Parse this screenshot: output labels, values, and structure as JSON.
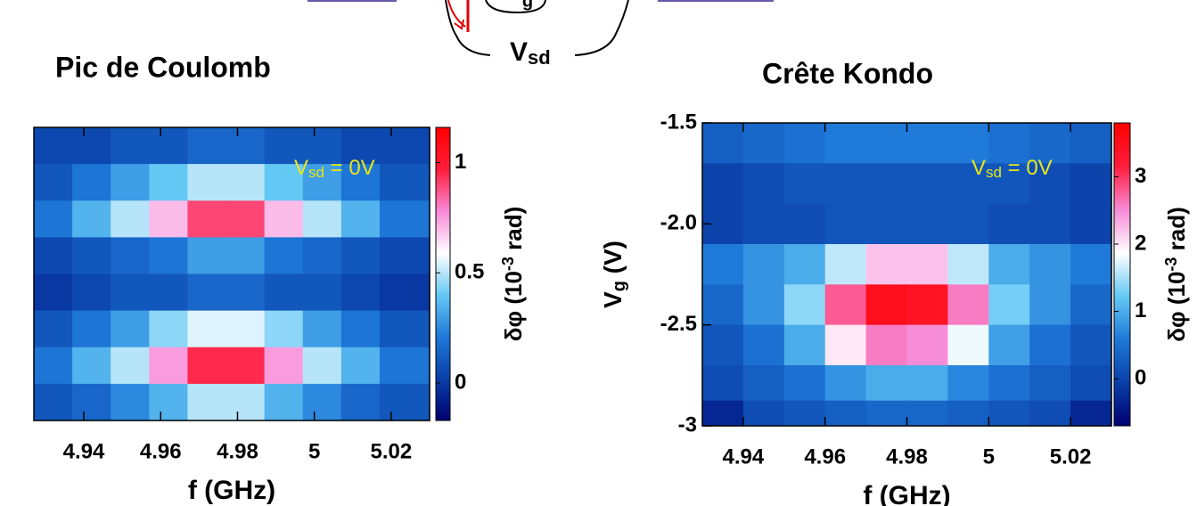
{
  "diagram": {
    "gate_label": "g",
    "source_drain_label": {
      "main": "V",
      "sub": "sd"
    }
  },
  "chart_data": [
    {
      "type": "heatmap",
      "title": "Pic de Coulomb",
      "xlabel": "f (GHz)",
      "colorbar_label": {
        "main": "δφ (10",
        "sup": "-3",
        "rest": " rad)"
      },
      "annotation": {
        "main": "V",
        "sub": "sd",
        "rest": " = 0V"
      },
      "annotation_color": "#e6e61a",
      "xlim": [
        4.927,
        5.03
      ],
      "xticks": [
        4.94,
        4.96,
        4.98,
        5,
        5.02
      ],
      "clim": [
        -0.17,
        1.16
      ],
      "cticks": [
        0,
        0.5,
        1
      ],
      "colormap": [
        "#000070",
        "#0a3fa8",
        "#1e78d8",
        "#64c8f4",
        "#ffffff",
        "#f78ad8",
        "#ff1e3c",
        "#ff0000"
      ],
      "x": [
        4.932,
        4.942,
        4.952,
        4.962,
        4.972,
        4.982,
        4.992,
        5.002,
        5.012,
        5.022
      ],
      "z": [
        [
          0.05,
          0.05,
          0.1,
          0.1,
          0.15,
          0.15,
          0.1,
          0.1,
          0.05,
          0.05
        ],
        [
          0.1,
          0.2,
          0.3,
          0.4,
          0.5,
          0.5,
          0.4,
          0.3,
          0.2,
          0.1
        ],
        [
          0.2,
          0.35,
          0.5,
          0.7,
          0.9,
          0.9,
          0.7,
          0.5,
          0.35,
          0.2
        ],
        [
          0.05,
          0.1,
          0.15,
          0.2,
          0.3,
          0.3,
          0.2,
          0.15,
          0.1,
          0.05
        ],
        [
          0,
          0.05,
          0.1,
          0.1,
          0.15,
          0.15,
          0.1,
          0.1,
          0.05,
          0
        ],
        [
          0.1,
          0.2,
          0.3,
          0.45,
          0.55,
          0.55,
          0.45,
          0.3,
          0.2,
          0.1
        ],
        [
          0.2,
          0.35,
          0.5,
          0.75,
          0.95,
          0.95,
          0.75,
          0.5,
          0.35,
          0.2
        ],
        [
          0.1,
          0.15,
          0.25,
          0.35,
          0.5,
          0.5,
          0.35,
          0.25,
          0.15,
          0.1
        ]
      ]
    },
    {
      "type": "heatmap",
      "title": "Crête Kondo",
      "xlabel": "f (GHz)",
      "ylabel": {
        "main": "V",
        "sub": "g",
        "rest": " (V)"
      },
      "colorbar_label": {
        "main": "δφ (10",
        "sup": "-3",
        "rest": " rad)"
      },
      "annotation": {
        "main": "V",
        "sub": "sd",
        "rest": " = 0V"
      },
      "annotation_color": "#e6e61a",
      "xlim": [
        4.93,
        5.03
      ],
      "xticks": [
        4.94,
        4.96,
        4.98,
        5,
        5.02
      ],
      "ylim": [
        -3,
        -1.5
      ],
      "yticks": [
        -1.5,
        {
          "value": -2,
          "label": "-2.0"
        },
        -2.5,
        -3
      ],
      "clim": [
        -0.7,
        3.8
      ],
      "cticks": [
        0,
        1,
        2,
        3
      ],
      "colormap": [
        "#000070",
        "#0a3fa8",
        "#1e78d8",
        "#64c8f4",
        "#ffffff",
        "#f78ad8",
        "#ff1e3c",
        "#ff0000"
      ],
      "x": [
        4.935,
        4.945,
        4.955,
        4.965,
        4.975,
        4.985,
        4.995,
        5.005,
        5.015,
        5.025
      ],
      "y": [
        -1.6,
        -1.8,
        -2.0,
        -2.2,
        -2.4,
        -2.6,
        -2.8,
        -2.95
      ],
      "z": [
        [
          0.3,
          0.4,
          0.5,
          0.6,
          0.6,
          0.6,
          0.6,
          0.5,
          0.4,
          0.3
        ],
        [
          0,
          0.1,
          0.2,
          0.2,
          0.2,
          0.2,
          0.2,
          0.2,
          0.1,
          0
        ],
        [
          0,
          0.1,
          0.1,
          0.2,
          0.2,
          0.2,
          0.2,
          0.1,
          0.1,
          0
        ],
        [
          0.6,
          0.8,
          1.0,
          1.6,
          2.2,
          2.2,
          1.6,
          1.0,
          0.8,
          0.6
        ],
        [
          0.4,
          0.8,
          1.4,
          2.8,
          3.5,
          3.4,
          2.6,
          1.3,
          0.8,
          0.4
        ],
        [
          0.2,
          0.5,
          1.0,
          2.0,
          2.6,
          2.5,
          1.8,
          0.9,
          0.5,
          0.2
        ],
        [
          0.1,
          0.3,
          0.5,
          0.8,
          1.0,
          1.0,
          0.7,
          0.5,
          0.3,
          0.1
        ],
        [
          -0.3,
          0.1,
          0.2,
          0.3,
          0.4,
          0.4,
          0.3,
          0.2,
          0.1,
          -0.3
        ]
      ]
    }
  ]
}
